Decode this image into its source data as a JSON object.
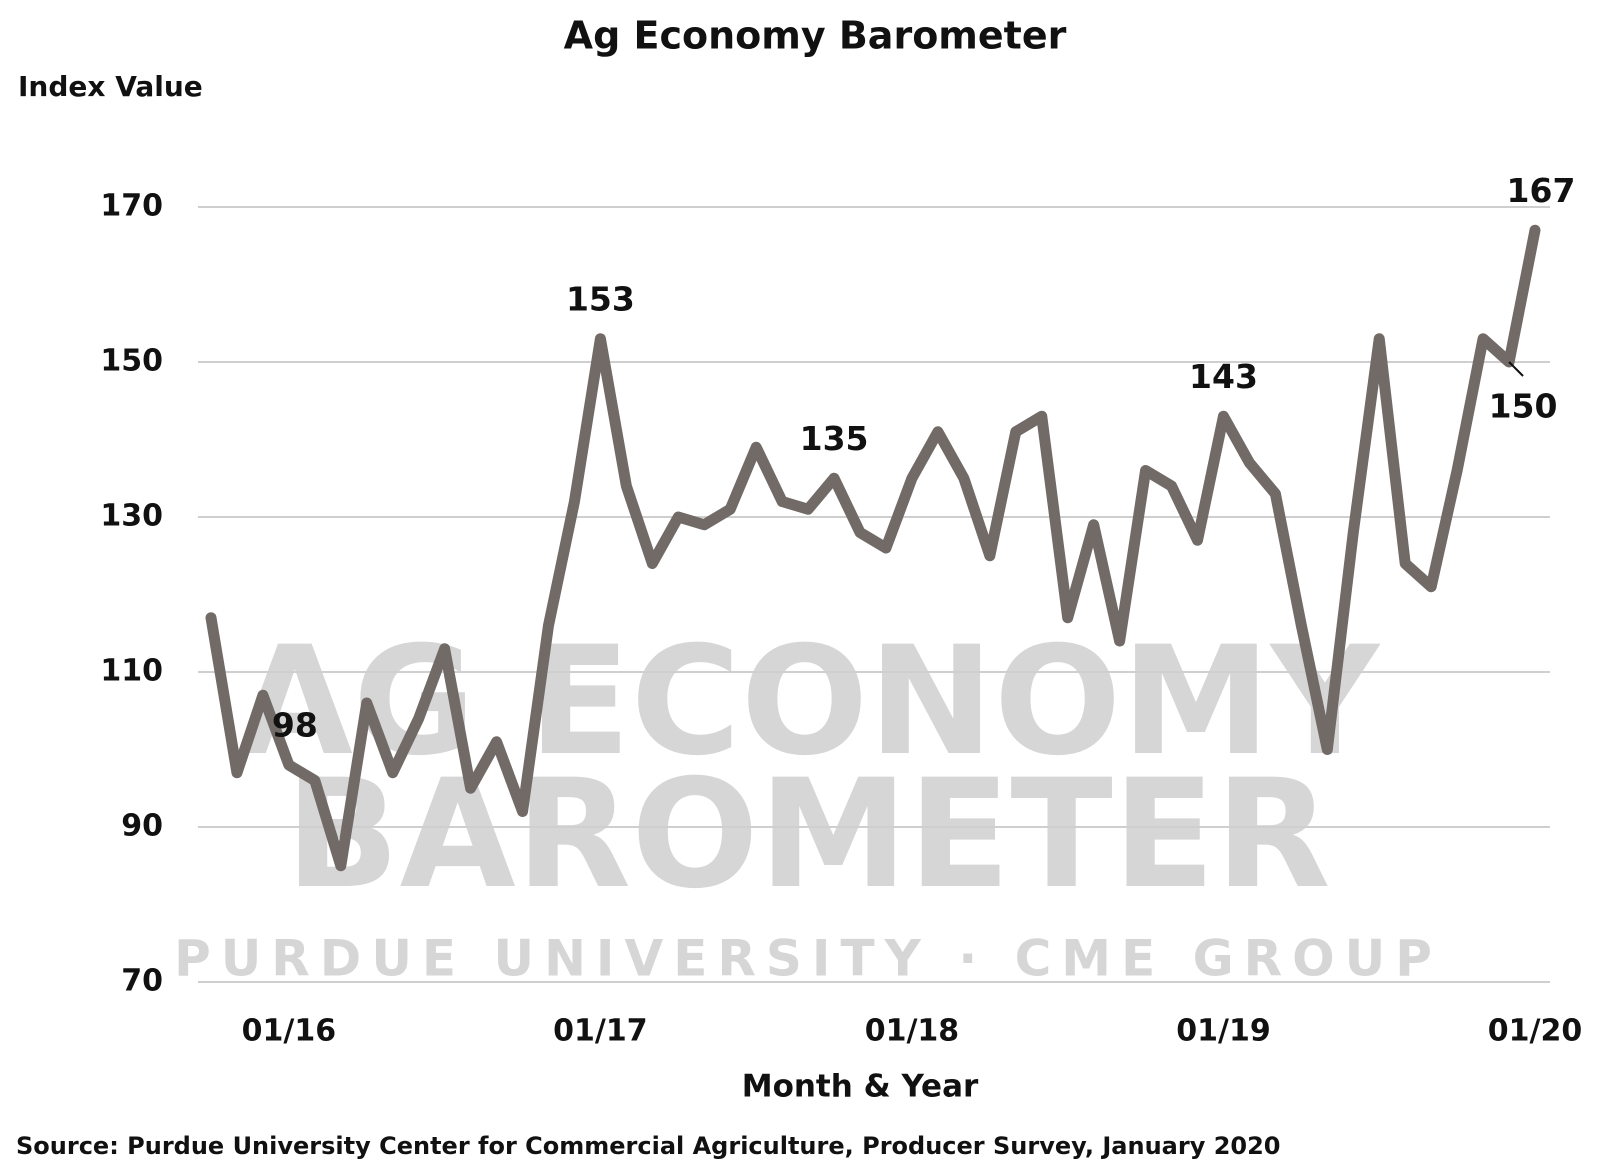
{
  "chart_data": {
    "type": "line",
    "title": "Ag Economy Barometer",
    "y_label": "Index Value",
    "x_label": "Month & Year",
    "source": "Source: Purdue University Center for Commercial Agriculture, Producer Survey, January 2020",
    "watermark": [
      "AG ECONOMY",
      "BAROMETER",
      "PURDUE UNIVERSITY · CME GROUP"
    ],
    "categories": [
      null,
      null,
      null,
      "01/16",
      null,
      null,
      null,
      null,
      null,
      null,
      null,
      null,
      null,
      null,
      null,
      "01/17",
      null,
      null,
      null,
      null,
      null,
      null,
      null,
      null,
      null,
      null,
      null,
      "01/18",
      null,
      null,
      null,
      null,
      null,
      null,
      null,
      null,
      null,
      null,
      null,
      "01/19",
      null,
      null,
      null,
      null,
      null,
      null,
      null,
      null,
      null,
      null,
      null,
      "01/20"
    ],
    "series": [
      {
        "name": "Ag Economy Barometer",
        "color": "#716a66",
        "values": [
          117,
          97,
          107,
          98,
          96,
          85,
          106,
          97,
          104,
          113,
          95,
          101,
          92,
          116,
          132,
          153,
          134,
          124,
          130,
          129,
          131,
          139,
          132,
          131,
          135,
          128,
          126,
          135,
          141,
          135,
          125,
          141,
          143,
          117,
          129,
          114,
          136,
          134,
          127,
          143,
          137,
          133,
          116,
          100,
          128,
          153,
          124,
          121,
          136,
          153,
          150,
          167
        ]
      }
    ],
    "labeled_indices": [
      3,
      15,
      24,
      39,
      50,
      51
    ],
    "ylim": [
      70,
      170
    ],
    "yticks": [
      70,
      90,
      110,
      130,
      150,
      170
    ],
    "grid": true
  }
}
